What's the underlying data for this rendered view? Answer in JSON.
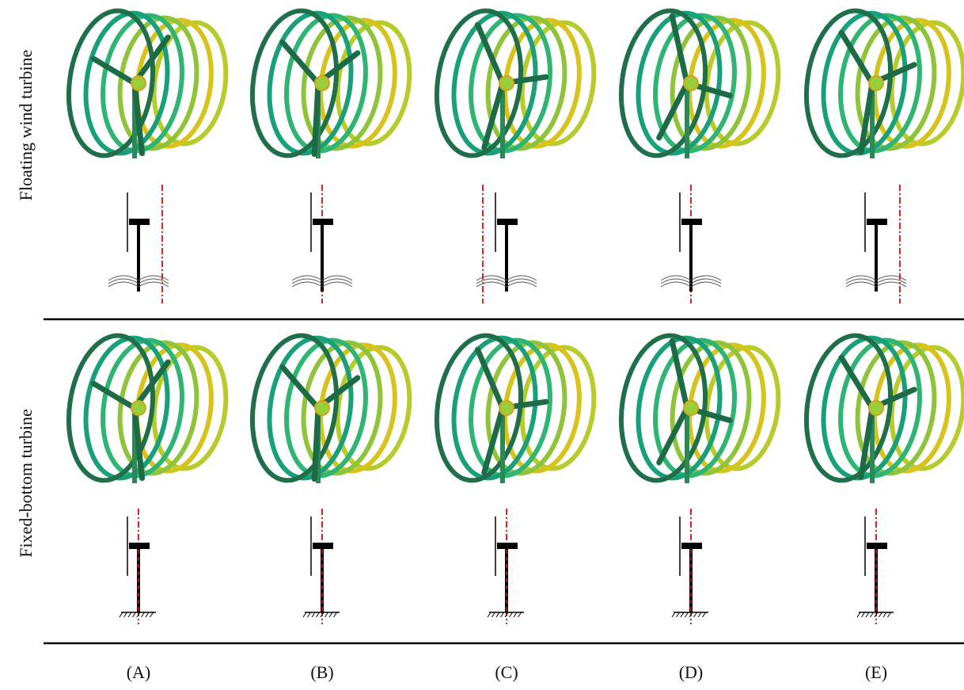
{
  "row_labels": [
    "Floating wind turbine",
    "Fixed-bottom turbine"
  ],
  "panel_labels": [
    "(A)",
    "(B)",
    "(C)",
    "(D)",
    "(E)"
  ]
}
